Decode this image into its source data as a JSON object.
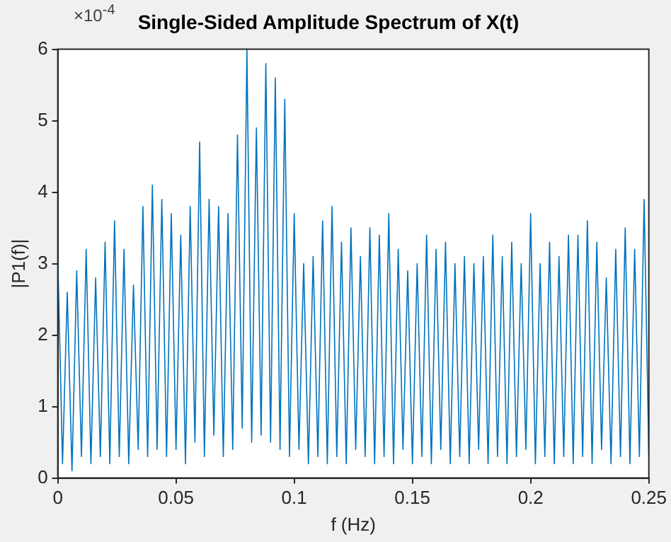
{
  "chart_data": {
    "type": "line",
    "title": "Single-Sided Amplitude Spectrum of X(t)",
    "xlabel": "f (Hz)",
    "ylabel": "|P1(f)|",
    "annotations": [
      "×10$^{-4}$"
    ],
    "x": [
      0,
      0.002,
      0.004,
      0.006,
      0.008,
      0.01,
      0.012,
      0.014,
      0.016,
      0.018,
      0.02,
      0.022,
      0.024,
      0.026,
      0.028,
      0.03,
      0.032,
      0.034,
      0.036,
      0.038,
      0.04,
      0.042,
      0.044,
      0.046,
      0.048,
      0.05,
      0.052,
      0.054,
      0.056,
      0.058,
      0.06,
      0.062,
      0.064,
      0.066,
      0.068,
      0.07,
      0.072,
      0.074,
      0.076,
      0.078,
      0.08,
      0.082,
      0.084,
      0.086,
      0.088,
      0.09,
      0.092,
      0.094,
      0.096,
      0.098,
      0.1,
      0.102,
      0.104,
      0.106,
      0.108,
      0.11,
      0.112,
      0.114,
      0.116,
      0.118,
      0.12,
      0.122,
      0.124,
      0.126,
      0.128,
      0.13,
      0.132,
      0.134,
      0.136,
      0.138,
      0.14,
      0.142,
      0.144,
      0.146,
      0.148,
      0.15,
      0.152,
      0.154,
      0.156,
      0.158,
      0.16,
      0.162,
      0.164,
      0.166,
      0.168,
      0.17,
      0.172,
      0.174,
      0.176,
      0.178,
      0.18,
      0.182,
      0.184,
      0.186,
      0.188,
      0.19,
      0.192,
      0.194,
      0.196,
      0.198,
      0.2,
      0.202,
      0.204,
      0.206,
      0.208,
      0.21,
      0.212,
      0.214,
      0.216,
      0.218,
      0.22,
      0.222,
      0.224,
      0.226,
      0.228,
      0.23,
      0.232,
      0.234,
      0.236,
      0.238,
      0.24,
      0.242,
      0.244,
      0.246,
      0.248,
      0.25
    ],
    "series": [
      {
        "color": "#0072bd",
        "values": [
          3.1,
          0.2,
          2.6,
          0.1,
          2.9,
          0.3,
          3.2,
          0.2,
          2.8,
          0.3,
          3.3,
          0.2,
          3.6,
          0.3,
          3.2,
          0.2,
          2.7,
          0.4,
          3.8,
          0.3,
          4.1,
          0.4,
          3.9,
          0.3,
          3.7,
          0.4,
          3.4,
          0.2,
          3.8,
          0.5,
          4.7,
          0.3,
          3.9,
          0.6,
          3.8,
          0.3,
          3.7,
          0.4,
          4.8,
          0.7,
          6.0,
          0.5,
          4.9,
          0.6,
          5.8,
          0.5,
          5.6,
          0.4,
          5.3,
          0.3,
          3.7,
          0.4,
          3.0,
          0.2,
          3.1,
          0.3,
          3.6,
          0.2,
          3.8,
          0.3,
          3.3,
          0.2,
          3.5,
          0.4,
          3.1,
          0.3,
          3.5,
          0.2,
          3.4,
          0.3,
          3.7,
          0.2,
          3.2,
          0.4,
          2.9,
          0.2,
          3.0,
          0.3,
          3.4,
          0.2,
          3.2,
          0.4,
          3.3,
          0.2,
          3.0,
          0.3,
          3.1,
          0.2,
          3.0,
          0.4,
          3.1,
          0.2,
          3.4,
          0.3,
          3.1,
          0.2,
          3.3,
          0.3,
          3.0,
          0.4,
          3.7,
          0.2,
          3.0,
          0.3,
          3.3,
          0.2,
          3.1,
          0.3,
          3.4,
          0.2,
          3.4,
          0.3,
          3.6,
          0.2,
          3.3,
          0.4,
          2.8,
          0.2,
          3.2,
          0.3,
          3.5,
          0.2,
          3.2,
          0.3,
          3.9,
          0.3
        ]
      }
    ],
    "xlim": [
      0,
      0.25
    ],
    "xticks": [
      0,
      0.05,
      0.1,
      0.15,
      0.2,
      0.25
    ],
    "ylim": [
      0,
      6
    ],
    "yticks": [
      0,
      1,
      2,
      3,
      4,
      5,
      6
    ]
  }
}
